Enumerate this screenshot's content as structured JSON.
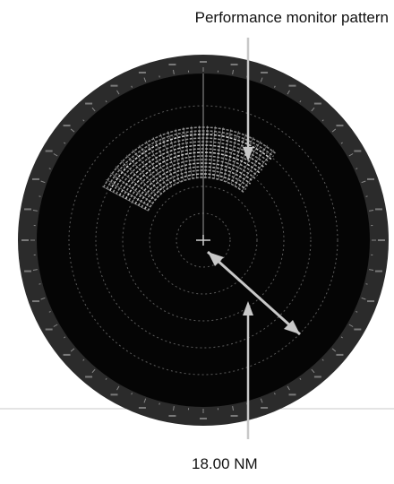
{
  "annotations": {
    "pattern_label": "Performance monitor pattern",
    "range_label": "18.00 NM"
  },
  "bearing_scale": {
    "step_degrees": 5,
    "label_step_degrees": 10
  },
  "colors": {
    "background": "#ffffff",
    "bezel": "#2b2b2b",
    "scope": "#050505",
    "ring": "#5c5c5c",
    "echo": "#d9d9d9",
    "arrow": "#c8c8c8",
    "baseline": "#c8c8c8"
  }
}
